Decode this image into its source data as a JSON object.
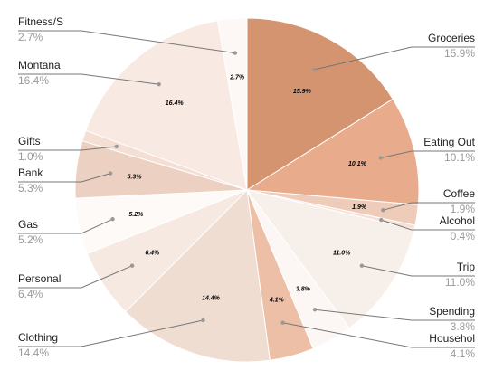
{
  "chart_data": {
    "type": "pie",
    "title": "",
    "slices": [
      {
        "name": "Groceries",
        "value": 15.9,
        "percent_label": "15.9%",
        "legend_value": "15.9%",
        "color": "#d4946f"
      },
      {
        "name": "Eating Out",
        "value": 10.1,
        "percent_label": "10.1%",
        "legend_value": "10.1%",
        "color": "#e8ac8c"
      },
      {
        "name": "Coffee",
        "value": 1.9,
        "percent_label": "1.9%",
        "legend_value": "1.9%",
        "color": "#efcbb9"
      },
      {
        "name": "Alcohol",
        "value": 0.4,
        "percent_label": "",
        "legend_value": "0.4%",
        "color": "#f7e1d6"
      },
      {
        "name": "Trip",
        "value": 11.0,
        "percent_label": "11.0%",
        "legend_value": "11.0%",
        "color": "#f7efea"
      },
      {
        "name": "Spending",
        "value": 3.8,
        "percent_label": "3.8%",
        "legend_value": "3.8%",
        "color": "#fcf7f4"
      },
      {
        "name": "Househol",
        "value": 4.1,
        "percent_label": "4.1%",
        "legend_value": "4.1%",
        "color": "#edbfa7"
      },
      {
        "name": "Clothing",
        "value": 14.4,
        "percent_label": "14.4%",
        "legend_value": "14.4%",
        "color": "#f0ddd1"
      },
      {
        "name": "Personal",
        "value": 6.4,
        "percent_label": "6.4%",
        "legend_value": "6.4%",
        "color": "#f6e9e1"
      },
      {
        "name": "Gas",
        "value": 5.2,
        "percent_label": "5.2%",
        "legend_value": "5.2%",
        "color": "#fdfaf8"
      },
      {
        "name": "Bank",
        "value": 5.3,
        "percent_label": "5.3%",
        "legend_value": "5.3%",
        "color": "#ecd0c2"
      },
      {
        "name": "Gifts",
        "value": 1.0,
        "percent_label": "",
        "legend_value": "1.0%",
        "color": "#f5dfd4"
      },
      {
        "name": "Montana",
        "value": 16.4,
        "percent_label": "16.4%",
        "legend_value": "16.4%",
        "color": "#f8e9e3"
      },
      {
        "name": "Fitness/S",
        "value": 2.7,
        "percent_label": "2.7%",
        "legend_value": "2.7%",
        "color": "#fdf8f5"
      }
    ],
    "legend_placement": "around pie, leader lines"
  }
}
